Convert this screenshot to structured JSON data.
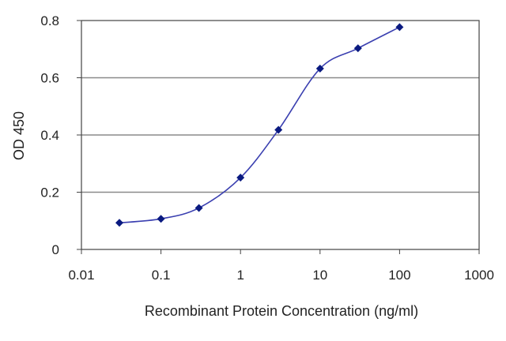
{
  "chart_data": {
    "type": "line",
    "title": "",
    "xlabel": "Recombinant Protein Concentration (ng/ml)",
    "ylabel": "OD 450",
    "xscale": "log",
    "xlim": [
      0.01,
      1000
    ],
    "ylim": [
      0,
      0.8
    ],
    "x_ticks": [
      "0.01",
      "0.1",
      "1",
      "10",
      "100",
      "1000"
    ],
    "y_ticks": [
      "0",
      "0.2",
      "0.4",
      "0.6",
      "0.8"
    ],
    "grid": "horizontal",
    "legend": "none",
    "series": [
      {
        "x": [
          0.03,
          0.1,
          0.3,
          1,
          3,
          10,
          30,
          100
        ],
        "y": [
          0.093,
          0.107,
          0.145,
          0.251,
          0.418,
          0.632,
          0.703,
          0.777
        ]
      }
    ],
    "colors": {
      "line": "#3a3fb0",
      "marker": "#0a1a80",
      "grid": "#8a8a8a",
      "axis": "#444444"
    }
  }
}
